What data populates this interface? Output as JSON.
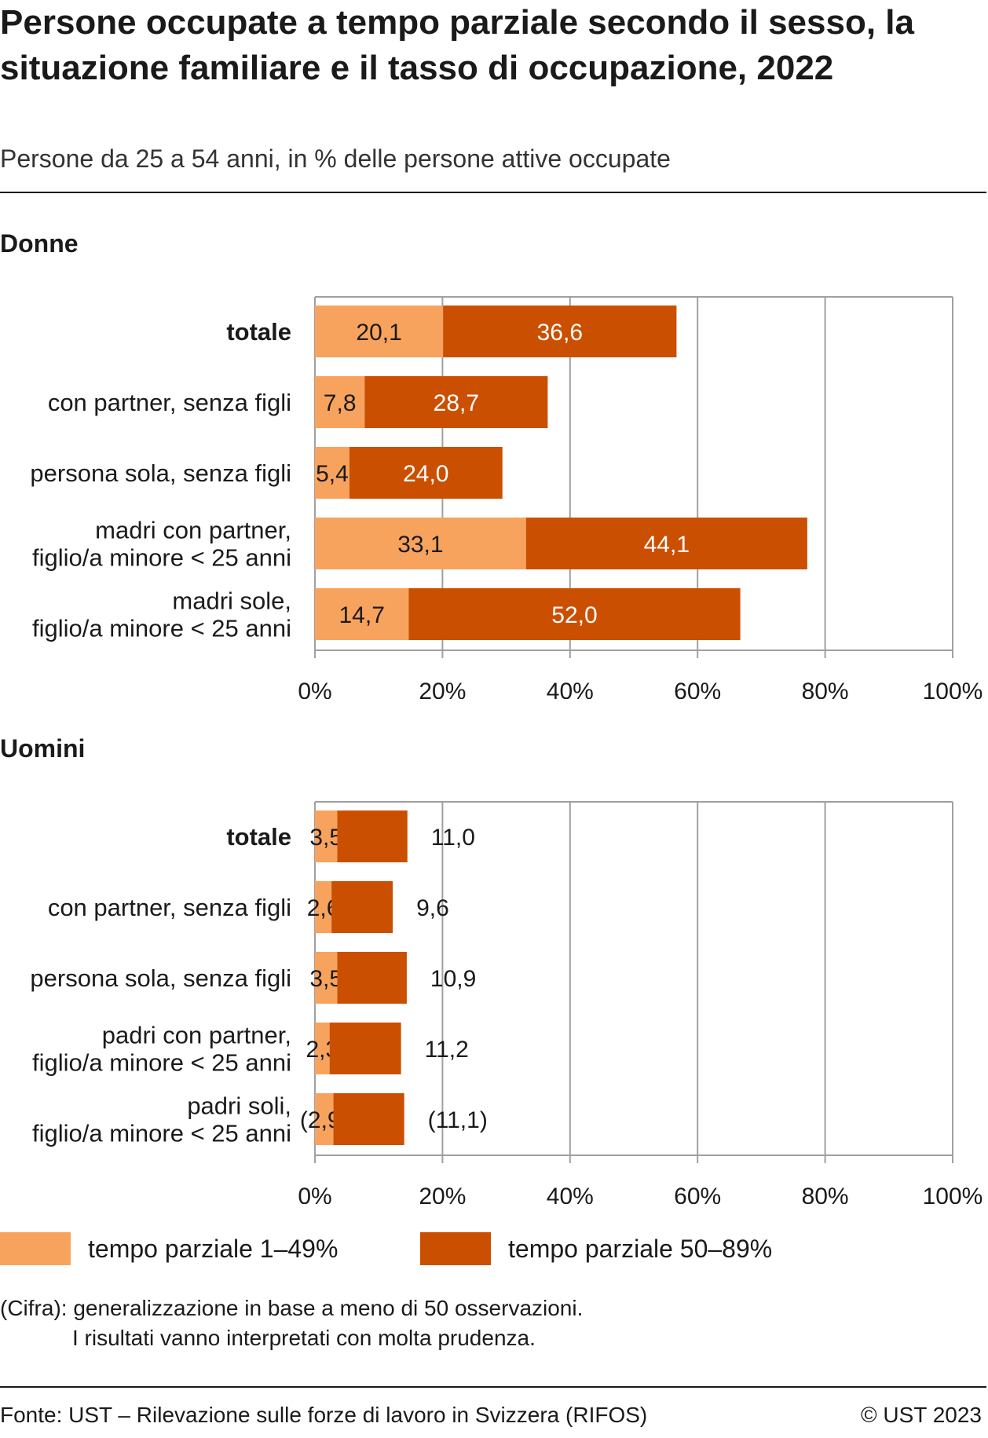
{
  "title": "Persone occupate a tempo parziale secondo il sesso, la situazione familiare e il tasso di occupazione, 2022",
  "subtitle": "Persone da 25 a 54 anni, in % delle persone attive occupate",
  "legend": {
    "items": [
      {
        "label": "tempo parziale 1–49%",
        "color": "#f8a35d"
      },
      {
        "label": "tempo parziale 50–89%",
        "color": "#cb4f00"
      }
    ]
  },
  "note": {
    "line1": "(Cifra): generalizzazione in base a meno di 50 osservazioni.",
    "line2": "I risultati vanno interpretati con molta prudenza."
  },
  "footer": {
    "source": "Fonte: UST – Rilevazione sulle forze di lavoro in Svizzera (RIFOS)",
    "copyright": "© UST 2023"
  },
  "chart_data": [
    {
      "type": "bar",
      "orientation": "horizontal",
      "stacked": true,
      "title": "Donne",
      "categories": [
        "totale",
        "con partner, senza figli",
        "persona sola, senza figli",
        "madri con partner, figlio/a minore < 25 anni",
        "madri sole, figlio/a minore < 25 anni"
      ],
      "category_lines": [
        [
          "totale"
        ],
        [
          "con partner, senza figli"
        ],
        [
          "persona sola, senza figli"
        ],
        [
          "madri con partner,",
          "figlio/a minore < 25 anni"
        ],
        [
          "madri sole,",
          "figlio/a minore < 25 anni"
        ]
      ],
      "bold_category": 0,
      "series": [
        {
          "name": "tempo parziale 1–49%",
          "values": [
            20.1,
            7.8,
            5.4,
            33.1,
            14.7
          ],
          "labels": [
            "20,1",
            "7,8",
            "5,4",
            "33,1",
            "14,7"
          ]
        },
        {
          "name": "tempo parziale 50–89%",
          "values": [
            36.6,
            28.7,
            24.0,
            44.1,
            52.0
          ],
          "labels": [
            "36,6",
            "28,7",
            "24,0",
            "44,1",
            "52,0"
          ]
        }
      ],
      "label_position": "inside",
      "xlim": [
        0,
        100
      ],
      "xticks": [
        "0%",
        "20%",
        "40%",
        "60%",
        "80%",
        "100%"
      ],
      "grid": true
    },
    {
      "type": "bar",
      "orientation": "horizontal",
      "stacked": true,
      "title": "Uomini",
      "categories": [
        "totale",
        "con partner, senza figli",
        "persona sola, senza figli",
        "padri con partner, figlio/a minore < 25 anni",
        "padri soli, figlio/a minore < 25 anni"
      ],
      "category_lines": [
        [
          "totale"
        ],
        [
          "con partner, senza figli"
        ],
        [
          "persona sola, senza figli"
        ],
        [
          "padri con partner,",
          "figlio/a minore < 25 anni"
        ],
        [
          "padri soli,",
          "figlio/a minore < 25 anni"
        ]
      ],
      "bold_category": 0,
      "series": [
        {
          "name": "tempo parziale 1–49%",
          "values": [
            3.5,
            2.6,
            3.5,
            2.3,
            2.9
          ],
          "labels": [
            "3,5",
            "2,6",
            "3,5",
            "2,3",
            "(2,9)"
          ]
        },
        {
          "name": "tempo parziale 50–89%",
          "values": [
            11.0,
            9.6,
            10.9,
            11.2,
            11.1
          ],
          "labels": [
            "11,0",
            "9,6",
            "10,9",
            "11,2",
            "(11,1)"
          ]
        }
      ],
      "label_position": "outside-second",
      "xlim": [
        0,
        100
      ],
      "xticks": [
        "0%",
        "20%",
        "40%",
        "60%",
        "80%",
        "100%"
      ],
      "grid": true
    }
  ]
}
